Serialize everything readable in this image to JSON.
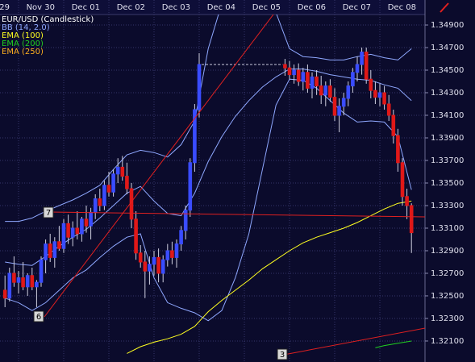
{
  "chart_data": {
    "type": "candlestick",
    "categories": [
      null,
      null,
      null,
      "29",
      null,
      null,
      null,
      null,
      null,
      null,
      null,
      null,
      null,
      "Nov 30",
      null,
      null,
      null,
      null,
      null,
      null,
      null,
      null,
      null,
      "Dec 01",
      null,
      null,
      null,
      null,
      null,
      null,
      null,
      null,
      null,
      "Dec 02",
      null,
      null,
      null,
      null,
      null,
      null,
      null,
      null,
      null,
      "Dec 03",
      null,
      null,
      null,
      null,
      null,
      null,
      null,
      null,
      null,
      "Dec 04",
      null,
      null,
      null,
      null,
      null,
      null,
      null,
      null,
      null,
      "Dec 05",
      null,
      null,
      null,
      null,
      null,
      null,
      null,
      null,
      null,
      "Dec 06",
      null,
      null,
      null,
      null,
      null,
      null,
      null,
      null,
      null,
      "Dec 07",
      null,
      null,
      null,
      null,
      null,
      null,
      null,
      null,
      null,
      "Dec 08"
    ],
    "series": [
      {
        "name": "EUR/USD (Candlestick)",
        "up_color": "#3a4cff",
        "down_color": "#e01818",
        "open": [
          1.3255,
          1.3248,
          1.327,
          1.3262,
          1.3266,
          1.3258,
          1.3268,
          1.3258,
          1.3262,
          1.3282,
          1.3296,
          1.3284,
          1.3298,
          1.3292,
          1.3314,
          1.3302,
          1.331,
          1.3305,
          1.3318,
          1.3312,
          1.3324,
          1.3336,
          1.333,
          1.3348,
          1.3342,
          1.3358,
          1.3364,
          1.3356,
          1.3345,
          1.3318,
          1.3288,
          1.328,
          1.3272,
          1.3278,
          1.3284,
          1.327,
          1.3282,
          1.329,
          1.3284,
          1.3296,
          1.3308,
          1.3326,
          1.3368,
          1.3415,
          null,
          null,
          null,
          null,
          null,
          null,
          null,
          null,
          null,
          null,
          null,
          null,
          null,
          null,
          null,
          null,
          null,
          null,
          1.3455,
          1.3452,
          1.3446,
          1.345,
          1.344,
          1.3448,
          1.3434,
          1.3444,
          1.3436,
          1.3428,
          1.3436,
          1.3426,
          1.341,
          1.3418,
          1.3425,
          1.3436,
          1.3448,
          1.3455,
          1.3466,
          1.3442,
          1.3432,
          1.3426,
          1.343,
          1.342,
          1.341,
          1.3392,
          1.3368,
          1.3338,
          1.333,
          null,
          null,
          null
        ],
        "high": [
          1.3268,
          1.3275,
          1.3285,
          1.3272,
          1.328,
          1.327,
          1.3275,
          1.3264,
          1.3285,
          1.33,
          1.3305,
          1.3302,
          1.3312,
          1.3318,
          1.3322,
          1.3316,
          1.3325,
          1.332,
          1.333,
          1.3328,
          1.334,
          1.3345,
          1.3352,
          1.336,
          1.3362,
          1.3372,
          1.3374,
          1.3368,
          1.335,
          1.3325,
          1.3295,
          1.329,
          1.3285,
          1.329,
          1.3292,
          1.3286,
          1.3296,
          1.3298,
          1.33,
          1.3312,
          1.333,
          1.3372,
          1.342,
          1.3465,
          null,
          null,
          null,
          null,
          null,
          null,
          null,
          null,
          null,
          null,
          null,
          null,
          null,
          null,
          null,
          null,
          null,
          null,
          1.346,
          1.3458,
          1.3455,
          1.3456,
          1.3452,
          1.3455,
          1.3448,
          1.345,
          1.3445,
          1.344,
          1.3442,
          1.3434,
          1.3425,
          1.343,
          1.344,
          1.3452,
          1.3462,
          1.347,
          1.347,
          1.345,
          1.344,
          1.3438,
          1.3436,
          1.3428,
          1.3415,
          1.3398,
          1.3372,
          1.3345,
          1.3332,
          null,
          null,
          null
        ],
        "low": [
          1.324,
          1.3245,
          1.3258,
          1.3252,
          1.3255,
          1.325,
          1.3255,
          1.324,
          1.3258,
          1.327,
          1.328,
          1.3275,
          1.329,
          1.3288,
          1.3296,
          1.3294,
          1.33,
          1.3298,
          1.3306,
          1.33,
          1.3318,
          1.3325,
          1.3326,
          1.3338,
          1.3338,
          1.335,
          1.3352,
          1.334,
          1.331,
          1.3282,
          1.3275,
          1.3248,
          1.326,
          1.3268,
          1.3262,
          1.3262,
          1.3276,
          1.3278,
          1.3275,
          1.329,
          1.33,
          1.332,
          1.336,
          1.3408,
          null,
          null,
          null,
          null,
          null,
          null,
          null,
          null,
          null,
          null,
          null,
          null,
          null,
          null,
          null,
          null,
          null,
          null,
          1.3445,
          1.3442,
          1.3438,
          1.3436,
          1.3432,
          1.343,
          1.3425,
          1.3428,
          1.342,
          1.3418,
          1.3422,
          1.3405,
          1.3395,
          1.341,
          1.3418,
          1.343,
          1.344,
          1.3446,
          1.3438,
          1.3425,
          1.342,
          1.3418,
          1.3415,
          1.3405,
          1.3385,
          1.336,
          1.333,
          1.3318,
          1.3288,
          null,
          null,
          null
        ],
        "close": [
          1.3248,
          1.327,
          1.3262,
          1.3266,
          1.3258,
          1.3268,
          1.3258,
          1.3262,
          1.3282,
          1.3296,
          1.3284,
          1.3298,
          1.3292,
          1.3314,
          1.3302,
          1.331,
          1.3305,
          1.3318,
          1.3312,
          1.3324,
          1.3336,
          1.333,
          1.3348,
          1.3342,
          1.3358,
          1.3364,
          1.3356,
          1.3345,
          1.3318,
          1.3288,
          1.328,
          1.3272,
          1.3278,
          1.3284,
          1.327,
          1.3282,
          1.329,
          1.3284,
          1.3296,
          1.3308,
          1.3326,
          1.3368,
          1.3415,
          1.3455,
          null,
          null,
          null,
          null,
          null,
          null,
          null,
          null,
          null,
          null,
          null,
          null,
          null,
          null,
          null,
          null,
          null,
          null,
          1.3452,
          1.3446,
          1.345,
          1.344,
          1.3448,
          1.3434,
          1.3444,
          1.3436,
          1.3428,
          1.3436,
          1.3426,
          1.341,
          1.3418,
          1.3425,
          1.3436,
          1.3448,
          1.3455,
          1.3466,
          1.3442,
          1.3432,
          1.3426,
          1.343,
          1.342,
          1.341,
          1.3392,
          1.3368,
          1.3338,
          1.333,
          1.3306,
          null,
          null,
          null
        ]
      }
    ],
    "indicators": [
      {
        "name": "BB (14, 2.0)",
        "color": "#8fa8ff",
        "x": [
          0,
          3,
          6,
          9,
          12,
          15,
          18,
          21,
          24,
          27,
          30,
          33,
          36,
          39,
          42,
          45,
          48,
          51,
          54,
          57,
          60,
          63,
          66,
          69,
          72,
          75,
          78,
          81,
          84,
          87,
          90
        ],
        "upper": [
          1.3316,
          1.3316,
          1.3319,
          1.3325,
          1.333,
          1.3335,
          1.3341,
          1.3348,
          1.3362,
          1.3375,
          1.3379,
          1.3377,
          1.3373,
          1.3384,
          1.3405,
          1.3469,
          1.3509,
          1.3534,
          1.3541,
          1.3526,
          1.3501,
          1.3469,
          1.3462,
          1.3461,
          1.3459,
          1.3459,
          1.3462,
          1.3464,
          1.3461,
          1.3459,
          1.3469
        ],
        "middle": [
          1.328,
          1.3278,
          1.3277,
          1.3285,
          1.3294,
          1.3302,
          1.3309,
          1.3319,
          1.333,
          1.3341,
          1.3347,
          1.3334,
          1.3323,
          1.3321,
          1.3341,
          1.3369,
          1.3391,
          1.3409,
          1.3423,
          1.3435,
          1.3444,
          1.3451,
          1.3451,
          1.3449,
          1.3446,
          1.3444,
          1.3442,
          1.3441,
          1.3437,
          1.3434,
          1.3423
        ],
        "lower": [
          1.3248,
          1.3244,
          1.3237,
          1.3244,
          1.3255,
          1.3266,
          1.3273,
          1.3284,
          1.3294,
          1.3302,
          1.3305,
          1.3266,
          1.3244,
          1.3239,
          1.3235,
          1.3228,
          1.3237,
          1.3266,
          1.3305,
          1.3362,
          1.3419,
          1.3442,
          1.3441,
          1.3434,
          1.3423,
          1.3412,
          1.3404,
          1.3405,
          1.3404,
          1.3391,
          1.3344
        ]
      },
      {
        "name": "EMA (100)",
        "color": "#ffff20",
        "x": [
          27,
          30,
          33,
          36,
          39,
          42,
          45,
          48,
          51,
          54,
          57,
          60,
          63,
          66,
          69,
          72,
          75,
          78,
          81,
          84,
          87,
          90
        ],
        "values": [
          1.3199,
          1.3205,
          1.3209,
          1.3212,
          1.3216,
          1.3223,
          1.3236,
          1.3246,
          1.3255,
          1.3264,
          1.3274,
          1.3282,
          1.329,
          1.3297,
          1.3302,
          1.3306,
          1.331,
          1.3315,
          1.3321,
          1.3327,
          1.3332,
          1.3334
        ]
      },
      {
        "name": "EMA (200)",
        "color": "#20d020",
        "x": [
          82,
          84,
          87,
          90
        ],
        "values": [
          1.3204,
          1.3206,
          1.3208,
          1.321
        ]
      },
      {
        "name": "EMA (250)",
        "color": "#ffb020",
        "x": [],
        "values": []
      }
    ],
    "annotations": [
      "7",
      "6",
      "3"
    ],
    "ylim": [
      1.31914,
      1.34993
    ],
    "yticks": [
      {
        "value": 1.349,
        "label": "1.34900"
      },
      {
        "value": 1.347,
        "label": "1.34700"
      },
      {
        "value": 1.345,
        "label": "1.34500"
      },
      {
        "value": 1.343,
        "label": "1.34300"
      },
      {
        "value": 1.341,
        "label": "1.34100"
      },
      {
        "value": 1.339,
        "label": "1.33900"
      },
      {
        "value": 1.337,
        "label": "1.33700"
      },
      {
        "value": 1.335,
        "label": "1.33500"
      },
      {
        "value": 1.333,
        "label": "1.33300"
      },
      {
        "value": 1.331,
        "label": "1.33100"
      },
      {
        "value": 1.329,
        "label": "1.32900"
      },
      {
        "value": 1.327,
        "label": "1.32700"
      },
      {
        "value": 1.325,
        "label": "1.32500"
      },
      {
        "value": 1.323,
        "label": "1.32300"
      },
      {
        "value": 1.321,
        "label": "1.32100"
      }
    ],
    "grid": true
  }
}
